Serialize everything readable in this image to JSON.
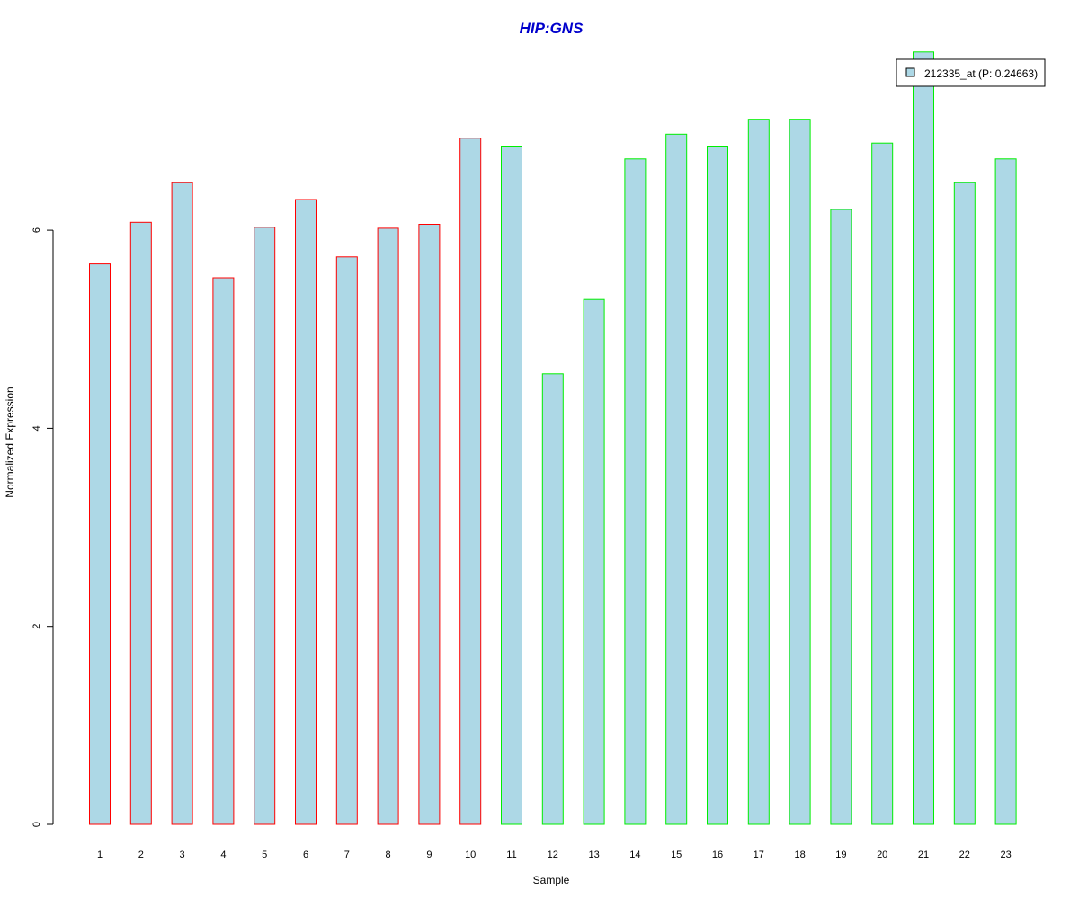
{
  "chart_data": {
    "type": "bar",
    "title": "HIP:GNS",
    "xlabel": "Sample",
    "ylabel": "Normalized Expression",
    "categories": [
      "1",
      "2",
      "3",
      "4",
      "5",
      "6",
      "7",
      "8",
      "9",
      "10",
      "11",
      "12",
      "13",
      "14",
      "15",
      "16",
      "17",
      "18",
      "19",
      "20",
      "21",
      "22",
      "23"
    ],
    "series": [
      {
        "name": "212335_at (P: 0.24663)",
        "values": [
          5.66,
          6.08,
          6.48,
          5.52,
          6.03,
          6.31,
          5.73,
          6.02,
          6.06,
          6.93,
          6.85,
          4.55,
          5.3,
          6.72,
          6.97,
          6.85,
          7.12,
          7.12,
          6.21,
          6.88,
          7.8,
          6.48,
          6.72
        ]
      }
    ],
    "group_borders": [
      "#ff0000",
      "#ff0000",
      "#ff0000",
      "#ff0000",
      "#ff0000",
      "#ff0000",
      "#ff0000",
      "#ff0000",
      "#ff0000",
      "#ff0000",
      "#00ee00",
      "#00ee00",
      "#00ee00",
      "#00ee00",
      "#00ee00",
      "#00ee00",
      "#00ee00",
      "#00ee00",
      "#00ee00",
      "#00ee00",
      "#00ee00",
      "#00ee00",
      "#00ee00"
    ],
    "yticks": [
      0,
      2,
      4,
      6
    ],
    "ylim": [
      0,
      7.8
    ],
    "legend_position": "top-right",
    "grid": false
  },
  "colors": {
    "bar_fill": "#add8e6",
    "title": "#0000cc",
    "axis": "#000000"
  }
}
